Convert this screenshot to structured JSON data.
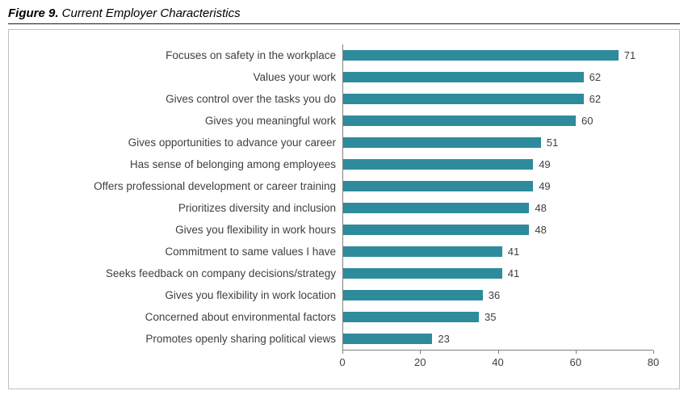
{
  "figure": {
    "label": "Figure 9.",
    "title": " Current Employer Characteristics"
  },
  "colors": {
    "bar": "#2e8b9c",
    "axis": "#808080",
    "text": "#404040",
    "border": "#bfbfbf"
  },
  "chart_data": {
    "type": "bar",
    "orientation": "horizontal",
    "title": "Figure 9. Current Employer Characteristics",
    "categories": [
      "Focuses on safety in the workplace",
      "Values your work",
      "Gives control over the tasks you do",
      "Gives you meaningful work",
      "Gives opportunities to advance your career",
      "Has sense of belonging among employees",
      "Offers professional development or career training",
      "Prioritizes diversity and inclusion",
      "Gives you flexibility in work hours",
      "Commitment to same values I have",
      "Seeks feedback on company decisions/strategy",
      "Gives you flexibility in work location",
      "Concerned about environmental factors",
      "Promotes openly sharing political views"
    ],
    "values": [
      71,
      62,
      62,
      60,
      51,
      49,
      49,
      48,
      48,
      41,
      41,
      36,
      35,
      23
    ],
    "value_labels": true,
    "xlabel": "",
    "ylabel": "",
    "xlim": [
      0,
      80
    ],
    "x_ticks": [
      0,
      20,
      40,
      60,
      80
    ],
    "grid": false,
    "legend": false,
    "bar_color": "#2e8b9c"
  }
}
